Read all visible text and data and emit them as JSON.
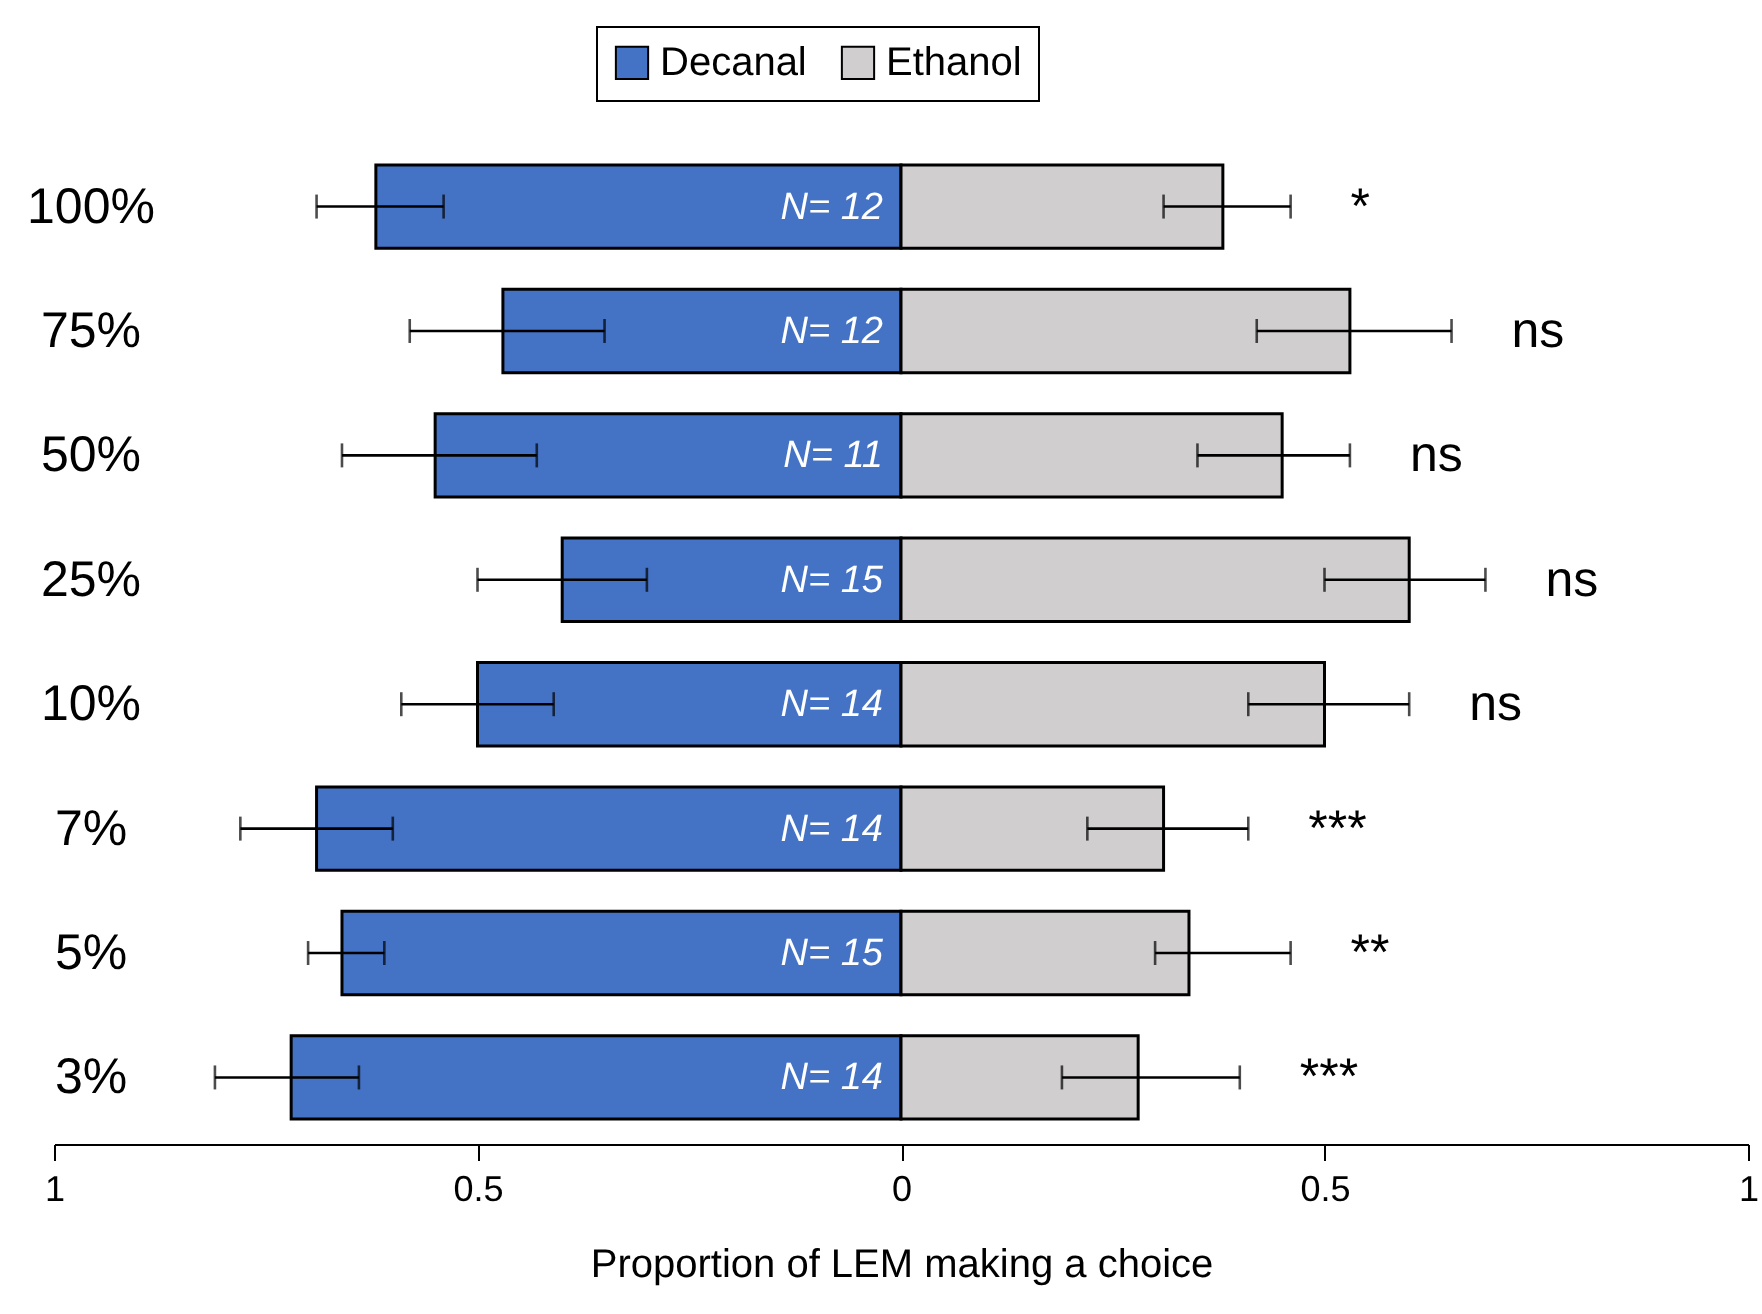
{
  "chart_data": {
    "type": "bar",
    "orientation": "horizontal",
    "xlabel": "Proportion of LEM making a choice",
    "categories": [
      "100%",
      "75%",
      "50%",
      "25%",
      "10%",
      "7%",
      "5%",
      "3%"
    ],
    "series": [
      {
        "name": "Decanal",
        "color": "#4472c4",
        "values": [
          -0.62,
          -0.47,
          -0.55,
          -0.4,
          -0.5,
          -0.69,
          -0.66,
          -0.72
        ],
        "errors": [
          [
            -0.69,
            -0.54
          ],
          [
            -0.58,
            -0.35
          ],
          [
            -0.66,
            -0.43
          ],
          [
            -0.5,
            -0.3
          ],
          [
            -0.59,
            -0.41
          ],
          [
            -0.78,
            -0.6
          ],
          [
            -0.7,
            -0.61
          ],
          [
            -0.81,
            -0.64
          ]
        ]
      },
      {
        "name": "Ethanol",
        "color": "#d0cece",
        "values": [
          0.38,
          0.53,
          0.45,
          0.6,
          0.5,
          0.31,
          0.34,
          0.28
        ],
        "errors": [
          [
            0.31,
            0.46
          ],
          [
            0.42,
            0.65
          ],
          [
            0.35,
            0.53
          ],
          [
            0.5,
            0.69
          ],
          [
            0.41,
            0.6
          ],
          [
            0.22,
            0.41
          ],
          [
            0.3,
            0.46
          ],
          [
            0.19,
            0.4
          ]
        ]
      }
    ],
    "xlim": [
      -1,
      1
    ],
    "xticks": [
      {
        "value": -1,
        "label": "1"
      },
      {
        "value": -0.5,
        "label": "0.5"
      },
      0,
      {
        "value": 0.5,
        "label": "0.5"
      },
      1
    ],
    "legend": "top",
    "annotations": [
      "N= 12",
      "N= 12",
      "N= 11",
      "N= 15",
      "N= 14",
      "N= 14",
      "N= 15",
      "N= 14",
      "*",
      "ns",
      "ns",
      "ns",
      "ns",
      "***",
      "**",
      "***"
    ],
    "stacked": true
  }
}
